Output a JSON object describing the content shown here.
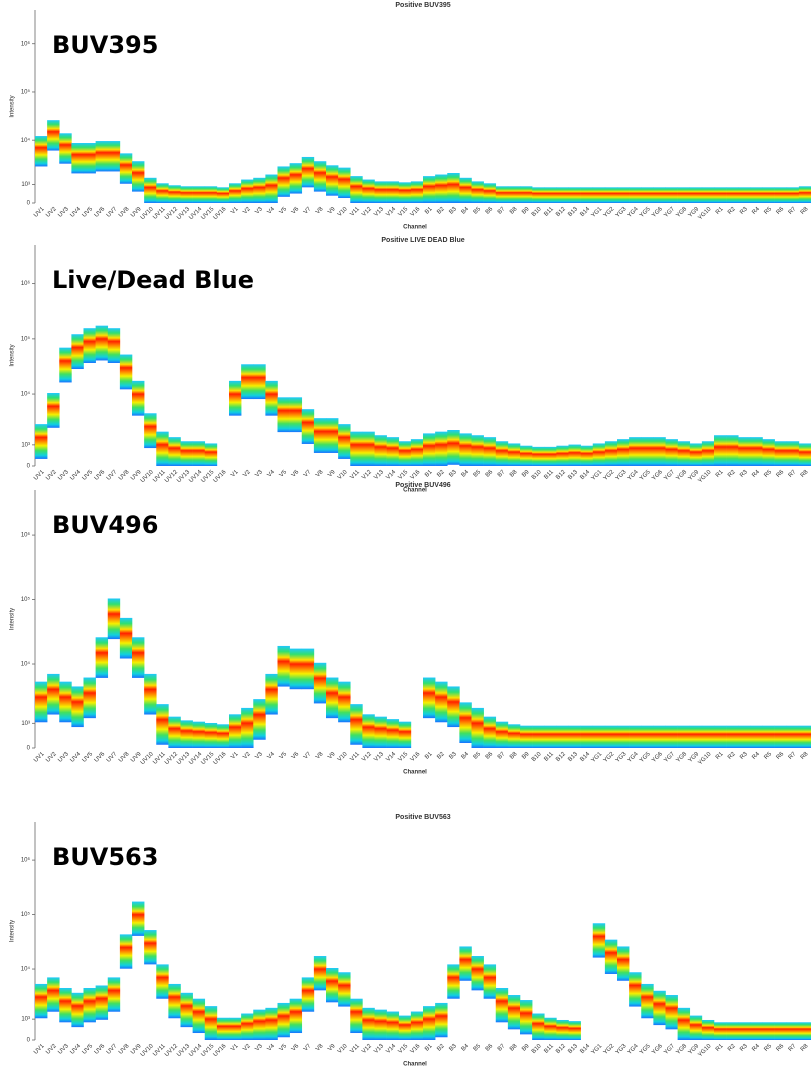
{
  "chart_data": [
    {
      "type": "spectrum",
      "title": "Positive BUV395",
      "label": "BUV395",
      "xlabel": "Channel",
      "ylabel": "Intensity",
      "yscale": "biexponential",
      "categories": [
        "UV1",
        "UV2",
        "UV3",
        "UV4",
        "UV5",
        "UV6",
        "UV7",
        "UV8",
        "UV9",
        "UV10",
        "UV11",
        "UV12",
        "UV13",
        "UV14",
        "UV15",
        "UV16",
        "V1",
        "V2",
        "V3",
        "V4",
        "V5",
        "V6",
        "V7",
        "V8",
        "V9",
        "V10",
        "V11",
        "V12",
        "V13",
        "V14",
        "V15",
        "V16",
        "B1",
        "B2",
        "B3",
        "B4",
        "B5",
        "B6",
        "B7",
        "B8",
        "B9",
        "B10",
        "B11",
        "B12",
        "B13",
        "B14",
        "YG1",
        "YG2",
        "YG3",
        "YG4",
        "YG5",
        "YG6",
        "YG7",
        "YG8",
        "YG9",
        "YG10",
        "R1",
        "R2",
        "R3",
        "R4",
        "R5",
        "R6",
        "R7",
        "R8"
      ],
      "values": [
        7000,
        15000,
        8000,
        5000,
        5000,
        5500,
        5500,
        3000,
        2000,
        700,
        400,
        300,
        250,
        250,
        250,
        200,
        400,
        600,
        700,
        900,
        1500,
        1800,
        2500,
        2000,
        1600,
        1400,
        800,
        600,
        500,
        500,
        450,
        500,
        800,
        900,
        1000,
        700,
        500,
        400,
        250,
        250,
        250,
        200,
        200,
        200,
        200,
        200,
        200,
        200,
        200,
        200,
        200,
        200,
        200,
        200,
        200,
        200,
        200,
        200,
        200,
        200,
        200,
        200,
        200,
        250
      ],
      "ylim": [
        0,
        5000000
      ],
      "yticks": [
        0,
        {
          "value": 1000,
          "label": "10³"
        },
        {
          "value": 10000,
          "label": "10⁴"
        },
        {
          "value": 100000,
          "label": "10⁵"
        },
        {
          "value": 1000000,
          "label": "10⁶"
        }
      ]
    },
    {
      "type": "spectrum",
      "title": "Positive LIVE DEAD Blue",
      "label": "Live/Dead Blue",
      "xlabel": "Channel",
      "ylabel": "Intensity",
      "yscale": "biexponential",
      "categories": [
        "UV1",
        "UV2",
        "UV3",
        "UV4",
        "UV5",
        "UV6",
        "UV7",
        "UV8",
        "UV9",
        "UV10",
        "UV11",
        "UV12",
        "UV13",
        "UV14",
        "UV15",
        "UV16",
        "V1",
        "V2",
        "V3",
        "V4",
        "V5",
        "V6",
        "V7",
        "V8",
        "V9",
        "V10",
        "V11",
        "V12",
        "V13",
        "V14",
        "V15",
        "V16",
        "B1",
        "B2",
        "B3",
        "B4",
        "B5",
        "B6",
        "B7",
        "B8",
        "B9",
        "B10",
        "B11",
        "B12",
        "B13",
        "B14",
        "YG1",
        "YG2",
        "YG3",
        "YG4",
        "YG5",
        "YG6",
        "YG7",
        "YG8",
        "YG9",
        "YG10",
        "R1",
        "R2",
        "R3",
        "R4",
        "R5",
        "R6",
        "R7",
        "R8"
      ],
      "values": [
        1500,
        6000,
        40000,
        70000,
        90000,
        100000,
        90000,
        30000,
        10000,
        2500,
        1000,
        700,
        500,
        500,
        400,
        null,
        10000,
        20000,
        20000,
        10000,
        5000,
        5000,
        3000,
        2000,
        2000,
        1500,
        1000,
        1000,
        800,
        700,
        500,
        600,
        900,
        1000,
        1100,
        900,
        800,
        700,
        500,
        400,
        300,
        250,
        250,
        300,
        350,
        300,
        400,
        500,
        600,
        700,
        700,
        700,
        600,
        500,
        400,
        500,
        800,
        800,
        700,
        700,
        600,
        500,
        500,
        400
      ],
      "ylim": [
        0,
        5000000
      ],
      "yticks": [
        0,
        {
          "value": 1000,
          "label": "10³"
        },
        {
          "value": 10000,
          "label": "10⁴"
        },
        {
          "value": 100000,
          "label": "10⁵"
        },
        {
          "value": 1000000,
          "label": "10⁶"
        }
      ]
    },
    {
      "type": "spectrum",
      "title": "Positive BUV496",
      "label": "BUV496",
      "xlabel": "Channel",
      "ylabel": "Intensity",
      "yscale": "biexponential",
      "categories": [
        "UV1",
        "UV2",
        "UV3",
        "UV4",
        "UV5",
        "UV6",
        "UV7",
        "UV8",
        "UV9",
        "UV10",
        "UV11",
        "UV12",
        "UV13",
        "UV14",
        "UV15",
        "UV16",
        "V1",
        "V2",
        "V3",
        "V4",
        "V5",
        "V6",
        "V7",
        "V8",
        "V9",
        "V10",
        "V11",
        "V12",
        "V13",
        "V14",
        "V15",
        "V16",
        "B1",
        "B2",
        "B3",
        "B4",
        "B5",
        "B6",
        "B7",
        "B8",
        "B9",
        "B10",
        "B11",
        "B12",
        "B13",
        "B14",
        "YG1",
        "YG2",
        "YG3",
        "YG4",
        "YG5",
        "YG6",
        "YG7",
        "YG8",
        "YG9",
        "YG10",
        "R1",
        "R2",
        "R3",
        "R4",
        "R5",
        "R6",
        "R7",
        "R8"
      ],
      "values": [
        3000,
        4000,
        3000,
        2500,
        3500,
        15000,
        60000,
        30000,
        15000,
        4000,
        1200,
        600,
        450,
        400,
        350,
        300,
        700,
        1000,
        1500,
        4000,
        11000,
        10000,
        10000,
        6000,
        3500,
        3000,
        1200,
        700,
        600,
        500,
        400,
        null,
        3500,
        3000,
        2500,
        1300,
        1000,
        600,
        400,
        300,
        250,
        250,
        250,
        250,
        250,
        250,
        250,
        250,
        250,
        250,
        250,
        250,
        250,
        250,
        250,
        250,
        250,
        250,
        250,
        250,
        250,
        250,
        250,
        250
      ],
      "ylim": [
        0,
        5000000
      ],
      "yticks": [
        0,
        {
          "value": 1000,
          "label": "10³"
        },
        {
          "value": 10000,
          "label": "10⁴"
        },
        {
          "value": 100000,
          "label": "10⁵"
        },
        {
          "value": 1000000,
          "label": "10⁶"
        }
      ]
    },
    {
      "type": "spectrum",
      "title": "Positive BUV563",
      "label": "BUV563",
      "xlabel": "Channel",
      "ylabel": "Intensity",
      "yscale": "biexponential",
      "categories": [
        "UV1",
        "UV2",
        "UV3",
        "UV4",
        "UV5",
        "UV6",
        "UV7",
        "UV8",
        "UV9",
        "UV10",
        "UV11",
        "UV12",
        "UV13",
        "UV14",
        "UV15",
        "UV16",
        "V1",
        "V2",
        "V3",
        "V4",
        "V5",
        "V6",
        "V7",
        "V8",
        "V9",
        "V10",
        "V11",
        "V12",
        "V13",
        "V14",
        "V15",
        "V16",
        "B1",
        "B2",
        "B3",
        "B4",
        "B5",
        "B6",
        "B7",
        "B8",
        "B9",
        "B10",
        "B11",
        "B12",
        "B13",
        "B14",
        "YG1",
        "YG2",
        "YG3",
        "YG4",
        "YG5",
        "YG6",
        "YG7",
        "YG8",
        "YG9",
        "YG10",
        "R1",
        "R2",
        "R3",
        "R4",
        "R5",
        "R6",
        "R7",
        "R8"
      ],
      "values": [
        3000,
        4000,
        2500,
        2000,
        2500,
        2800,
        4000,
        25000,
        100000,
        30000,
        7000,
        3000,
        2000,
        1500,
        1000,
        400,
        400,
        600,
        800,
        900,
        1200,
        1500,
        4000,
        10000,
        6000,
        5000,
        1500,
        900,
        800,
        700,
        500,
        700,
        1000,
        1200,
        7000,
        15000,
        10000,
        7000,
        2500,
        1800,
        1400,
        600,
        400,
        300,
        250,
        null,
        40000,
        20000,
        15000,
        5000,
        3000,
        2200,
        1800,
        900,
        500,
        300,
        200,
        200,
        200,
        200,
        200,
        200,
        200,
        200
      ],
      "ylim": [
        0,
        5000000
      ],
      "yticks": [
        0,
        {
          "value": 1000,
          "label": "10³"
        },
        {
          "value": 10000,
          "label": "10⁴"
        },
        {
          "value": 100000,
          "label": "10⁵"
        },
        {
          "value": 1000000,
          "label": "10⁶"
        }
      ]
    }
  ]
}
